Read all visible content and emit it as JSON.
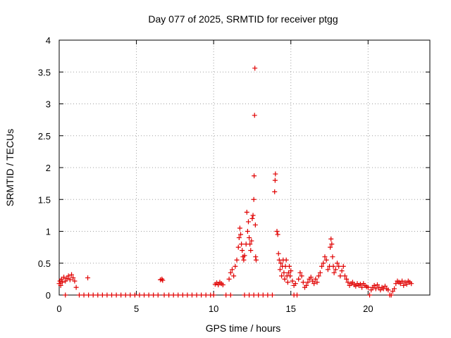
{
  "chart_data": {
    "type": "scatter",
    "title": "Day 077 of 2025, SRMTID for receiver ptgg",
    "xlabel": "GPS time / hours",
    "ylabel": "SRMTID / TECUs",
    "xlim": [
      0,
      24
    ],
    "ylim": [
      0,
      4
    ],
    "xticks": [
      0,
      5,
      10,
      15,
      20
    ],
    "xtick_labels": [
      "0",
      "5",
      "10",
      "15",
      "20"
    ],
    "yticks": [
      0,
      0.5,
      1,
      1.5,
      2,
      2.5,
      3,
      3.5,
      4
    ],
    "ytick_labels": [
      "0",
      "0.5",
      "1",
      "1.5",
      "2",
      "2.5",
      "3",
      "3.5",
      "4"
    ],
    "grid": true,
    "series": [
      {
        "name": "SRMTID",
        "marker": "+",
        "color": "#e00000",
        "points": [
          [
            0.0,
            0.18
          ],
          [
            0.05,
            0.22
          ],
          [
            0.1,
            0.15
          ],
          [
            0.15,
            0.25
          ],
          [
            0.2,
            0.2
          ],
          [
            0.3,
            0.28
          ],
          [
            0.4,
            0.22
          ],
          [
            0.5,
            0.26
          ],
          [
            0.6,
            0.3
          ],
          [
            0.7,
            0.24
          ],
          [
            0.8,
            0.32
          ],
          [
            0.9,
            0.27
          ],
          [
            1.0,
            0.22
          ],
          [
            1.1,
            0.12
          ],
          [
            1.85,
            0.27
          ],
          [
            0.4,
            0.0
          ],
          [
            1.3,
            0.0
          ],
          [
            1.6,
            0.0
          ],
          [
            1.9,
            0.0
          ],
          [
            2.2,
            0.0
          ],
          [
            2.5,
            0.0
          ],
          [
            2.8,
            0.0
          ],
          [
            3.1,
            0.0
          ],
          [
            3.4,
            0.0
          ],
          [
            3.7,
            0.0
          ],
          [
            4.0,
            0.0
          ],
          [
            4.3,
            0.0
          ],
          [
            4.6,
            0.0
          ],
          [
            4.9,
            0.0
          ],
          [
            5.2,
            0.0
          ],
          [
            5.5,
            0.0
          ],
          [
            5.8,
            0.0
          ],
          [
            6.1,
            0.0
          ],
          [
            6.4,
            0.0
          ],
          [
            6.55,
            0.24
          ],
          [
            6.65,
            0.25
          ],
          [
            6.7,
            0.23
          ],
          [
            6.8,
            0.0
          ],
          [
            7.1,
            0.0
          ],
          [
            7.4,
            0.0
          ],
          [
            7.7,
            0.0
          ],
          [
            8.0,
            0.0
          ],
          [
            8.3,
            0.0
          ],
          [
            8.6,
            0.0
          ],
          [
            8.9,
            0.0
          ],
          [
            9.2,
            0.0
          ],
          [
            9.5,
            0.0
          ],
          [
            9.8,
            0.0
          ],
          [
            10.0,
            0.0
          ],
          [
            10.1,
            0.17
          ],
          [
            10.2,
            0.19
          ],
          [
            10.3,
            0.16
          ],
          [
            10.4,
            0.2
          ],
          [
            10.5,
            0.18
          ],
          [
            10.6,
            0.16
          ],
          [
            10.8,
            0.0
          ],
          [
            11.1,
            0.0
          ],
          [
            11.0,
            0.25
          ],
          [
            11.1,
            0.35
          ],
          [
            11.2,
            0.4
          ],
          [
            11.3,
            0.3
          ],
          [
            11.4,
            0.45
          ],
          [
            11.5,
            0.55
          ],
          [
            11.6,
            0.75
          ],
          [
            11.65,
            0.9
          ],
          [
            11.7,
            1.05
          ],
          [
            11.75,
            0.95
          ],
          [
            11.8,
            0.8
          ],
          [
            11.85,
            0.7
          ],
          [
            11.9,
            0.6
          ],
          [
            11.95,
            0.55
          ],
          [
            12.0,
            0.62
          ],
          [
            12.1,
            0.8
          ],
          [
            12.15,
            1.3
          ],
          [
            12.2,
            1.0
          ],
          [
            12.25,
            1.15
          ],
          [
            12.3,
            0.9
          ],
          [
            12.35,
            0.8
          ],
          [
            12.4,
            0.7
          ],
          [
            12.45,
            0.85
          ],
          [
            12.5,
            1.2
          ],
          [
            12.55,
            1.25
          ],
          [
            12.6,
            1.5
          ],
          [
            12.62,
            1.87
          ],
          [
            12.65,
            2.82
          ],
          [
            12.67,
            3.56
          ],
          [
            12.7,
            1.1
          ],
          [
            12.72,
            0.6
          ],
          [
            12.75,
            0.55
          ],
          [
            12.0,
            0.0
          ],
          [
            12.3,
            0.0
          ],
          [
            12.6,
            0.0
          ],
          [
            12.9,
            0.0
          ],
          [
            13.2,
            0.0
          ],
          [
            13.5,
            0.0
          ],
          [
            13.8,
            0.0
          ],
          [
            13.95,
            1.62
          ],
          [
            13.98,
            1.8
          ],
          [
            14.0,
            1.9
          ],
          [
            14.1,
            1.0
          ],
          [
            14.15,
            0.95
          ],
          [
            14.2,
            0.65
          ],
          [
            14.25,
            0.55
          ],
          [
            14.3,
            0.4
          ],
          [
            14.35,
            0.5
          ],
          [
            14.4,
            0.3
          ],
          [
            14.45,
            0.45
          ],
          [
            14.5,
            0.55
          ],
          [
            14.55,
            0.35
          ],
          [
            14.6,
            0.25
          ],
          [
            14.65,
            0.45
          ],
          [
            14.7,
            0.55
          ],
          [
            14.75,
            0.3
          ],
          [
            14.8,
            0.2
          ],
          [
            14.85,
            0.35
          ],
          [
            14.9,
            0.45
          ],
          [
            14.95,
            0.3
          ],
          [
            15.0,
            0.38
          ],
          [
            15.1,
            0.22
          ],
          [
            15.2,
            0.15
          ],
          [
            15.3,
            0.18
          ],
          [
            15.2,
            0.0
          ],
          [
            15.4,
            0.0
          ],
          [
            15.5,
            0.25
          ],
          [
            15.6,
            0.35
          ],
          [
            15.7,
            0.3
          ],
          [
            15.8,
            0.2
          ],
          [
            15.9,
            0.12
          ],
          [
            16.0,
            0.15
          ],
          [
            16.1,
            0.2
          ],
          [
            16.2,
            0.25
          ],
          [
            16.3,
            0.28
          ],
          [
            16.4,
            0.22
          ],
          [
            16.5,
            0.18
          ],
          [
            16.6,
            0.25
          ],
          [
            16.7,
            0.2
          ],
          [
            16.8,
            0.3
          ],
          [
            16.9,
            0.35
          ],
          [
            17.0,
            0.45
          ],
          [
            17.1,
            0.5
          ],
          [
            17.2,
            0.6
          ],
          [
            17.3,
            0.55
          ],
          [
            17.4,
            0.4
          ],
          [
            17.5,
            0.45
          ],
          [
            17.55,
            0.75
          ],
          [
            17.6,
            0.88
          ],
          [
            17.65,
            0.8
          ],
          [
            17.7,
            0.6
          ],
          [
            17.75,
            0.45
          ],
          [
            17.8,
            0.35
          ],
          [
            17.9,
            0.4
          ],
          [
            18.0,
            0.5
          ],
          [
            18.1,
            0.45
          ],
          [
            18.2,
            0.3
          ],
          [
            18.3,
            0.38
          ],
          [
            18.4,
            0.45
          ],
          [
            18.5,
            0.3
          ],
          [
            18.6,
            0.25
          ],
          [
            18.7,
            0.2
          ],
          [
            18.8,
            0.15
          ],
          [
            18.9,
            0.18
          ],
          [
            19.0,
            0.2
          ],
          [
            19.1,
            0.16
          ],
          [
            19.2,
            0.14
          ],
          [
            19.3,
            0.18
          ],
          [
            19.4,
            0.15
          ],
          [
            19.5,
            0.17
          ],
          [
            19.6,
            0.12
          ],
          [
            19.7,
            0.18
          ],
          [
            19.8,
            0.15
          ],
          [
            19.9,
            0.13
          ],
          [
            20.0,
            0.12
          ],
          [
            20.1,
            0.0
          ],
          [
            20.2,
            0.08
          ],
          [
            20.3,
            0.12
          ],
          [
            20.4,
            0.15
          ],
          [
            20.5,
            0.1
          ],
          [
            20.6,
            0.16
          ],
          [
            20.7,
            0.12
          ],
          [
            20.8,
            0.08
          ],
          [
            20.9,
            0.12
          ],
          [
            21.0,
            0.1
          ],
          [
            21.1,
            0.14
          ],
          [
            21.2,
            0.1
          ],
          [
            21.3,
            0.08
          ],
          [
            21.4,
            0.0
          ],
          [
            21.5,
            0.0
          ],
          [
            21.6,
            0.06
          ],
          [
            21.7,
            0.1
          ],
          [
            21.8,
            0.18
          ],
          [
            21.9,
            0.22
          ],
          [
            22.0,
            0.2
          ],
          [
            22.1,
            0.18
          ],
          [
            22.2,
            0.22
          ],
          [
            22.3,
            0.15
          ],
          [
            22.4,
            0.2
          ],
          [
            22.5,
            0.17
          ],
          [
            22.6,
            0.22
          ],
          [
            22.7,
            0.2
          ],
          [
            22.8,
            0.18
          ]
        ]
      }
    ]
  }
}
